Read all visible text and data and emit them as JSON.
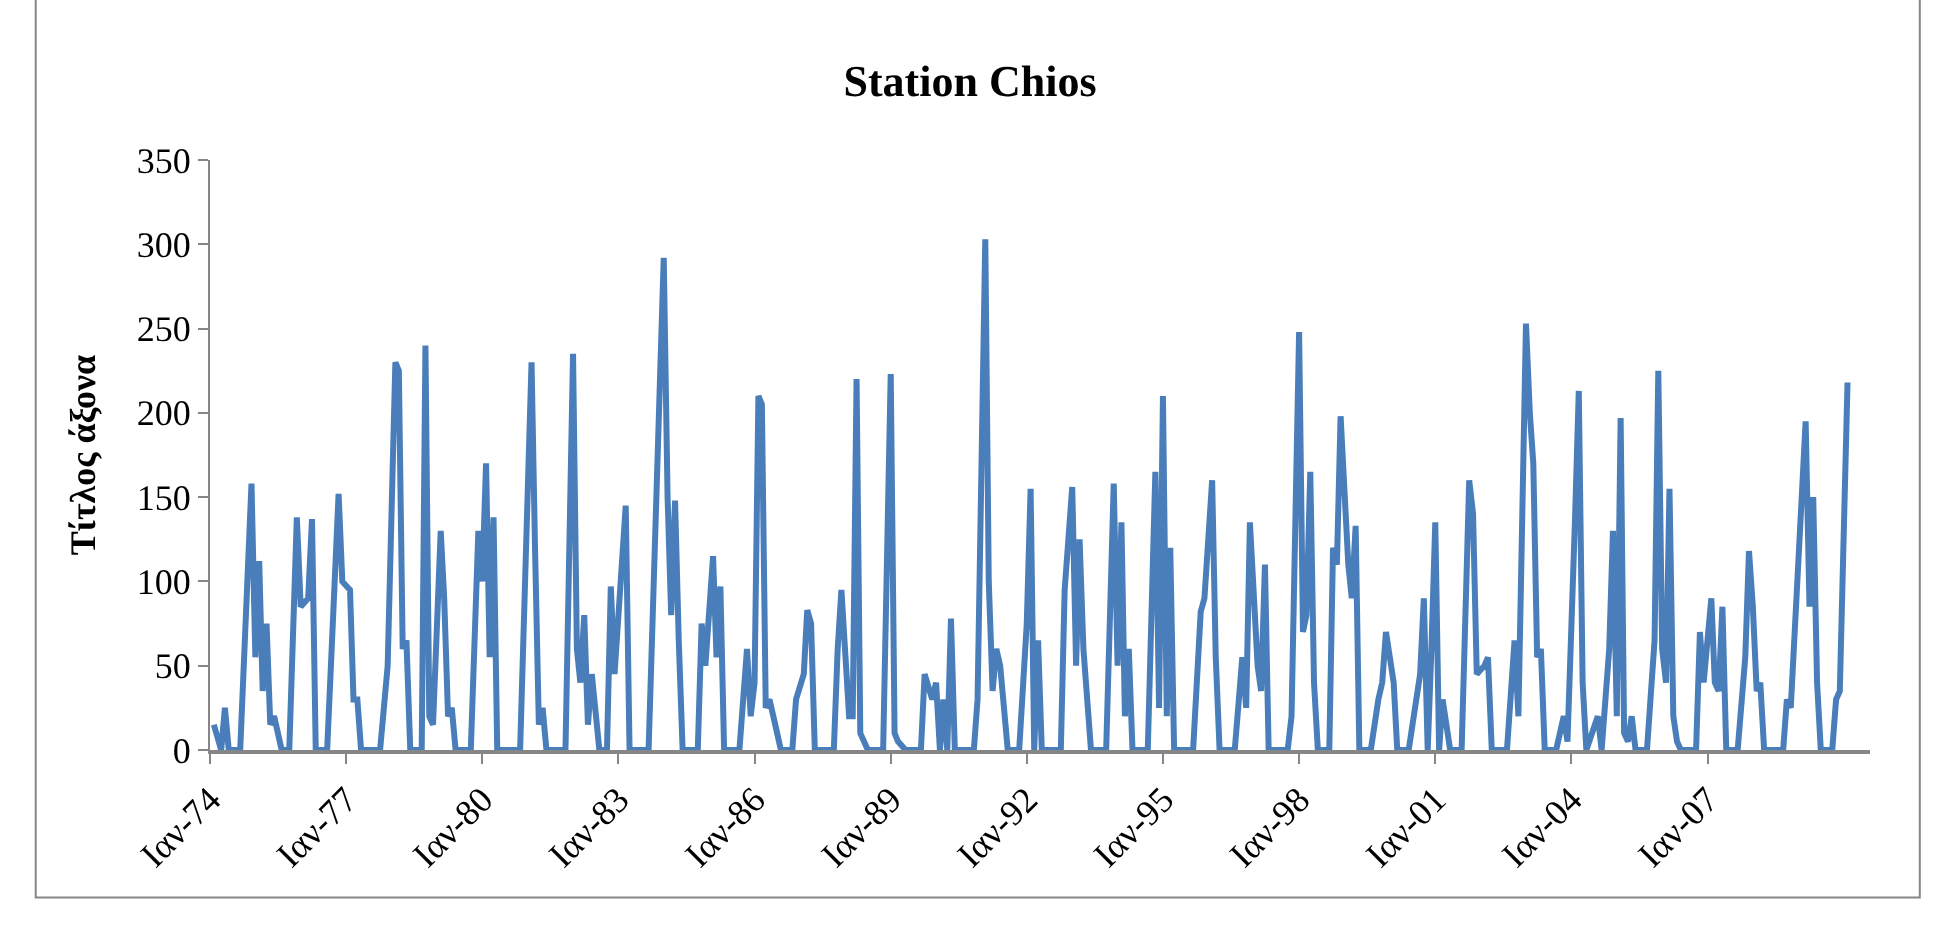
{
  "chart_data": {
    "type": "line",
    "title": "Station Chios",
    "ylabel": "Τίτλος άξονα",
    "x": [
      "1974-02",
      "1974-04",
      "1974-05",
      "1974-06",
      "1974-09",
      "1974-12",
      "1975-01",
      "1975-02",
      "1975-03",
      "1975-04",
      "1975-05",
      "1975-06",
      "1975-08",
      "1975-10",
      "1975-12",
      "1976-01",
      "1976-03",
      "1976-04",
      "1976-05",
      "1976-08",
      "1976-11",
      "1976-12",
      "1977-02",
      "1977-03",
      "1977-04",
      "1977-05",
      "1977-10",
      "1977-12",
      "1978-02",
      "1978-03",
      "1978-04",
      "1978-05",
      "1978-06",
      "1978-09",
      "1978-10",
      "1978-11",
      "1978-12",
      "1979-02",
      "1979-03",
      "1979-04",
      "1979-05",
      "1979-06",
      "1979-10",
      "1979-12",
      "1980-01",
      "1980-02",
      "1980-03",
      "1980-04",
      "1980-05",
      "1980-11",
      "1981-02",
      "1981-03",
      "1981-04",
      "1981-05",
      "1981-06",
      "1981-11",
      "1982-01",
      "1982-02",
      "1982-03",
      "1982-04",
      "1982-05",
      "1982-06",
      "1982-08",
      "1982-10",
      "1982-11",
      "1982-12",
      "1983-03",
      "1983-04",
      "1983-09",
      "1984-01",
      "1984-02",
      "1984-03",
      "1984-04",
      "1984-05",
      "1984-06",
      "1984-10",
      "1984-11",
      "1984-12",
      "1985-02",
      "1985-03",
      "1985-04",
      "1985-05",
      "1985-09",
      "1985-11",
      "1985-12",
      "1986-01",
      "1986-02",
      "1986-03",
      "1986-04",
      "1986-05",
      "1986-06",
      "1986-08",
      "1986-11",
      "1986-12",
      "1987-02",
      "1987-03",
      "1987-04",
      "1987-05",
      "1987-10",
      "1987-11",
      "1987-12",
      "1988-02",
      "1988-03",
      "1988-04",
      "1988-05",
      "1988-07",
      "1988-11",
      "1989-01",
      "1989-02",
      "1989-03",
      "1989-05",
      "1989-09",
      "1989-10",
      "1989-12",
      "1990-01",
      "1990-02",
      "1990-03",
      "1990-04",
      "1990-05",
      "1990-06",
      "1990-11",
      "1990-12",
      "1991-02",
      "1991-03",
      "1991-04",
      "1991-05",
      "1991-06",
      "1991-08",
      "1991-11",
      "1992-01",
      "1992-02",
      "1992-03",
      "1992-04",
      "1992-05",
      "1992-10",
      "1992-11",
      "1993-01",
      "1993-02",
      "1993-03",
      "1993-04",
      "1993-06",
      "1993-10",
      "1993-12",
      "1994-01",
      "1994-02",
      "1994-03",
      "1994-04",
      "1994-05",
      "1994-09",
      "1994-11",
      "1994-12",
      "1995-01",
      "1995-02",
      "1995-03",
      "1995-04",
      "1995-09",
      "1995-11",
      "1995-12",
      "1996-02",
      "1996-03",
      "1996-04",
      "1996-08",
      "1996-10",
      "1996-11",
      "1996-12",
      "1997-02",
      "1997-03",
      "1997-04",
      "1997-05",
      "1997-10",
      "1997-11",
      "1998-01",
      "1998-02",
      "1998-03",
      "1998-04",
      "1998-05",
      "1998-06",
      "1998-09",
      "1998-10",
      "1998-11",
      "1998-12",
      "1999-02",
      "1999-03",
      "1999-04",
      "1999-05",
      "1999-08",
      "1999-10",
      "1999-11",
      "1999-12",
      "2000-02",
      "2000-03",
      "2000-06",
      "2000-09",
      "2000-10",
      "2000-11",
      "2000-12",
      "2001-01",
      "2001-02",
      "2001-03",
      "2001-05",
      "2001-08",
      "2001-10",
      "2001-11",
      "2001-12",
      "2002-02",
      "2002-03",
      "2002-04",
      "2002-08",
      "2002-10",
      "2002-11",
      "2003-01",
      "2003-02",
      "2003-03",
      "2003-04",
      "2003-05",
      "2003-06",
      "2003-09",
      "2003-11",
      "2003-12",
      "2004-02",
      "2004-03",
      "2004-04",
      "2004-05",
      "2004-08",
      "2004-09",
      "2004-11",
      "2004-12",
      "2005-01",
      "2005-02",
      "2005-03",
      "2005-04",
      "2005-05",
      "2005-06",
      "2005-09",
      "2005-11",
      "2005-12",
      "2006-01",
      "2006-02",
      "2006-03",
      "2006-04",
      "2006-05",
      "2006-06",
      "2006-10",
      "2006-11",
      "2006-12",
      "2007-02",
      "2007-03",
      "2007-04",
      "2007-05",
      "2007-06",
      "2007-09",
      "2007-11",
      "2007-12",
      "2008-01",
      "2008-02",
      "2008-03",
      "2008-04",
      "2008-09",
      "2008-10",
      "2008-11",
      "2009-02",
      "2009-03",
      "2009-04",
      "2009-05",
      "2009-06",
      "2009-07",
      "2009-10",
      "2009-11",
      "2009-12",
      "2010-02"
    ],
    "series": [
      {
        "color": "#4a7ebb",
        "values": [
          15,
          0,
          25,
          0,
          0,
          158,
          55,
          112,
          35,
          75,
          15,
          20,
          0,
          0,
          138,
          85,
          90,
          137,
          0,
          0,
          152,
          100,
          95,
          30,
          30,
          0,
          0,
          50,
          230,
          225,
          60,
          65,
          0,
          0,
          240,
          20,
          15,
          130,
          90,
          20,
          25,
          0,
          0,
          130,
          100,
          170,
          55,
          138,
          0,
          0,
          230,
          120,
          15,
          25,
          0,
          0,
          235,
          60,
          40,
          80,
          15,
          45,
          0,
          0,
          97,
          45,
          145,
          0,
          0,
          292,
          150,
          80,
          148,
          65,
          0,
          0,
          75,
          50,
          115,
          55,
          97,
          0,
          0,
          60,
          20,
          40,
          210,
          205,
          25,
          30,
          20,
          0,
          0,
          30,
          45,
          83,
          75,
          0,
          0,
          60,
          95,
          20,
          20,
          220,
          10,
          0,
          0,
          223,
          10,
          5,
          0,
          0,
          45,
          30,
          40,
          0,
          30,
          0,
          78,
          0,
          0,
          30,
          303,
          100,
          35,
          60,
          50,
          0,
          0,
          75,
          155,
          0,
          65,
          0,
          0,
          95,
          156,
          50,
          125,
          60,
          0,
          0,
          158,
          50,
          135,
          20,
          60,
          0,
          0,
          165,
          25,
          210,
          20,
          120,
          0,
          0,
          82,
          90,
          160,
          55,
          0,
          0,
          55,
          25,
          135,
          50,
          35,
          110,
          0,
          0,
          20,
          248,
          70,
          80,
          165,
          40,
          0,
          0,
          120,
          110,
          198,
          110,
          90,
          133,
          0,
          0,
          30,
          40,
          70,
          40,
          0,
          0,
          45,
          90,
          0,
          60,
          135,
          0,
          30,
          0,
          0,
          160,
          140,
          45,
          50,
          55,
          0,
          0,
          65,
          20,
          253,
          200,
          170,
          55,
          60,
          0,
          0,
          20,
          5,
          140,
          213,
          40,
          0,
          20,
          0,
          60,
          130,
          20,
          197,
          10,
          5,
          20,
          0,
          0,
          65,
          225,
          60,
          40,
          155,
          20,
          5,
          0,
          0,
          70,
          40,
          90,
          40,
          35,
          85,
          0,
          0,
          55,
          118,
          85,
          35,
          40,
          0,
          0,
          30,
          25,
          155,
          195,
          85,
          150,
          40,
          0,
          0,
          30,
          35,
          218
        ]
      }
    ],
    "xlim": [
      "1974-01",
      "2010-08"
    ],
    "xticks": [
      {
        "value": "1974-01",
        "label": "Ιαν-74"
      },
      {
        "value": "1977-01",
        "label": "Ιαν-77"
      },
      {
        "value": "1980-01",
        "label": "Ιαν-80"
      },
      {
        "value": "1983-01",
        "label": "Ιαν-83"
      },
      {
        "value": "1986-01",
        "label": "Ιαν-86"
      },
      {
        "value": "1989-01",
        "label": "Ιαν-89"
      },
      {
        "value": "1992-01",
        "label": "Ιαν-92"
      },
      {
        "value": "1995-01",
        "label": "Ιαν-95"
      },
      {
        "value": "1998-01",
        "label": "Ιαν-98"
      },
      {
        "value": "2001-01",
        "label": "Ιαν-01"
      },
      {
        "value": "2004-01",
        "label": "Ιαν-04"
      },
      {
        "value": "2007-01",
        "label": "Ιαν-07"
      }
    ],
    "ylim": [
      0,
      350
    ],
    "yticks": [
      0,
      50,
      100,
      150,
      200,
      250,
      300,
      350
    ],
    "grid": false,
    "marker": "none",
    "line_style": "solid"
  }
}
